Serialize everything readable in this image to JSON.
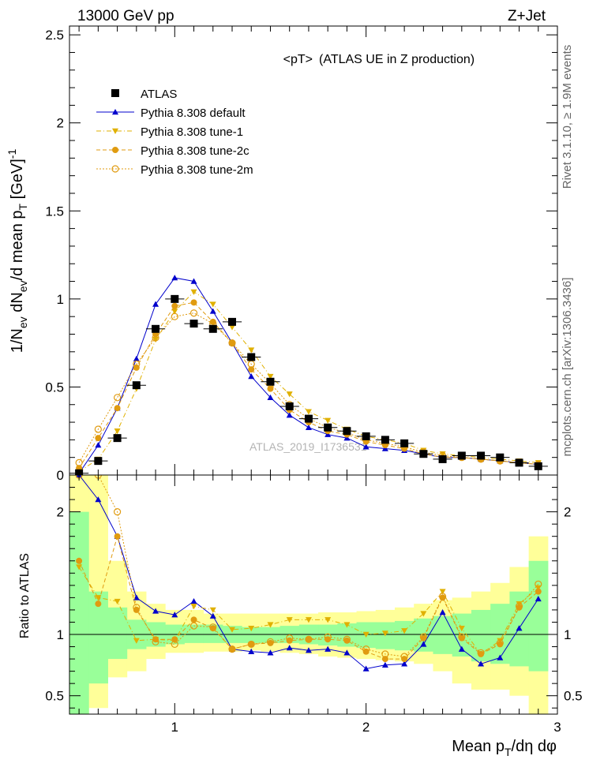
{
  "header": {
    "left": "13000 GeV pp",
    "right": "Z+Jet"
  },
  "side": {
    "rivet": "Rivet 3.1.10, ≥ 1.9M events",
    "mcplots": "mcplots.cern.ch [arXiv:1306.3436]"
  },
  "chart_data": {
    "type": "line",
    "title": "<pT>",
    "subtitle": "(ATLAS UE in Z production)",
    "watermark": "ATLAS_2019_I1736531",
    "ylabel": "1/N_ev dN_ev/d mean p_T [GeV]^-1",
    "ratio_ylabel": "Ratio to ATLAS",
    "xlabel": "Mean p_T/dη dφ",
    "xlim": [
      0.45,
      3.0
    ],
    "ylim": [
      0,
      2.55
    ],
    "ratio_ylim": [
      0.35,
      2.3
    ],
    "x_ticks": [
      "1",
      "2",
      "3"
    ],
    "y_ticks": [
      "0",
      "0.5",
      "1",
      "1.5",
      "2",
      "2.5"
    ],
    "ratio_y_ticks": [
      "0.5",
      "1",
      "2"
    ],
    "legend_position": "top-left",
    "x": [
      0.5,
      0.6,
      0.7,
      0.8,
      0.9,
      1.0,
      1.1,
      1.2,
      1.3,
      1.4,
      1.5,
      1.6,
      1.7,
      1.8,
      1.9,
      2.0,
      2.1,
      2.2,
      2.3,
      2.4,
      2.5,
      2.6,
      2.7,
      2.8,
      2.9
    ],
    "data": {
      "name": "ATLAS",
      "values": [
        0.01,
        0.08,
        0.21,
        0.51,
        0.83,
        1.0,
        0.86,
        0.83,
        0.87,
        0.67,
        0.53,
        0.39,
        0.32,
        0.27,
        0.25,
        0.22,
        0.2,
        0.18,
        0.12,
        0.09,
        0.11,
        0.11,
        0.1,
        0.07,
        0.05
      ],
      "color": "#000000"
    },
    "band_outer": [
      [
        0.0,
        2.3
      ],
      [
        0.4,
        2.3
      ],
      [
        0.65,
        1.6
      ],
      [
        0.7,
        1.35
      ],
      [
        0.8,
        1.25
      ],
      [
        0.85,
        1.2
      ],
      [
        0.85,
        1.2
      ],
      [
        0.86,
        1.17
      ],
      [
        0.86,
        1.17
      ],
      [
        0.87,
        1.17
      ],
      [
        0.86,
        1.17
      ],
      [
        0.85,
        1.17
      ],
      [
        0.84,
        1.17
      ],
      [
        0.82,
        1.18
      ],
      [
        0.81,
        1.18
      ],
      [
        0.8,
        1.19
      ],
      [
        0.79,
        1.2
      ],
      [
        0.78,
        1.22
      ],
      [
        0.76,
        1.25
      ],
      [
        0.7,
        1.28
      ],
      [
        0.6,
        1.3
      ],
      [
        0.55,
        1.35
      ],
      [
        0.55,
        1.42
      ],
      [
        0.5,
        1.55
      ],
      [
        0.35,
        1.8
      ]
    ],
    "band_inner": [
      [
        0.35,
        2.0
      ],
      [
        0.6,
        1.35
      ],
      [
        0.8,
        1.22
      ],
      [
        0.88,
        1.12
      ],
      [
        0.9,
        1.1
      ],
      [
        0.92,
        1.08
      ],
      [
        0.93,
        1.08
      ],
      [
        0.93,
        1.08
      ],
      [
        0.93,
        1.07
      ],
      [
        0.93,
        1.06
      ],
      [
        0.93,
        1.06
      ],
      [
        0.93,
        1.07
      ],
      [
        0.92,
        1.08
      ],
      [
        0.91,
        1.08
      ],
      [
        0.9,
        1.09
      ],
      [
        0.89,
        1.1
      ],
      [
        0.88,
        1.1
      ],
      [
        0.87,
        1.11
      ],
      [
        0.86,
        1.13
      ],
      [
        0.84,
        1.15
      ],
      [
        0.82,
        1.17
      ],
      [
        0.78,
        1.2
      ],
      [
        0.76,
        1.25
      ],
      [
        0.74,
        1.35
      ],
      [
        0.7,
        1.6
      ]
    ],
    "series": [
      {
        "name": "Pythia 8.308 default",
        "color": "#0000cc",
        "marker": "triangle-up",
        "line": "solid",
        "values": [
          0.01,
          0.17,
          0.38,
          0.66,
          0.97,
          1.12,
          1.1,
          0.93,
          0.75,
          0.56,
          0.44,
          0.34,
          0.27,
          0.23,
          0.21,
          0.16,
          0.15,
          0.14,
          0.12,
          0.1,
          0.1,
          0.09,
          0.08,
          0.07,
          0.06
        ],
        "ratio": [
          2.3,
          2.1,
          1.8,
          1.3,
          1.19,
          1.16,
          1.27,
          1.15,
          0.88,
          0.86,
          0.85,
          0.89,
          0.87,
          0.88,
          0.85,
          0.72,
          0.75,
          0.76,
          0.92,
          1.18,
          0.88,
          0.76,
          0.81,
          1.05,
          1.29
        ]
      },
      {
        "name": "Pythia 8.308 tune-1",
        "color": "#e0b000",
        "marker": "triangle-down",
        "line": "dashdot",
        "values": [
          0.02,
          0.09,
          0.25,
          0.49,
          0.77,
          0.93,
          1.04,
          0.97,
          0.84,
          0.71,
          0.56,
          0.46,
          0.36,
          0.31,
          0.26,
          0.22,
          0.2,
          0.18,
          0.14,
          0.12,
          0.11,
          0.1,
          0.09,
          0.08,
          0.07
        ],
        "ratio": [
          1.55,
          1.3,
          1.27,
          0.95,
          0.96,
          0.95,
          1.23,
          1.2,
          1.04,
          1.05,
          1.08,
          1.12,
          1.12,
          1.12,
          1.08,
          1.0,
          1.01,
          1.03,
          1.17,
          1.35,
          1.05,
          0.84,
          0.95,
          1.25,
          1.38
        ]
      },
      {
        "name": "Pythia 8.308 tune-2c",
        "color": "#e09b10",
        "marker": "circle",
        "line": "dashed",
        "values": [
          0.04,
          0.21,
          0.38,
          0.61,
          0.8,
          0.96,
          0.98,
          0.87,
          0.75,
          0.6,
          0.49,
          0.37,
          0.3,
          0.25,
          0.23,
          0.19,
          0.17,
          0.15,
          0.12,
          0.1,
          0.1,
          0.09,
          0.08,
          0.07,
          0.06
        ],
        "ratio": [
          1.6,
          1.25,
          1.8,
          1.2,
          0.96,
          0.96,
          1.12,
          1.05,
          0.88,
          0.92,
          0.93,
          0.95,
          0.96,
          0.96,
          0.95,
          0.86,
          0.8,
          0.8,
          0.97,
          1.3,
          0.97,
          0.84,
          0.92,
          1.22,
          1.35
        ]
      },
      {
        "name": "Pythia 8.308 tune-2m",
        "color": "#e09b10",
        "marker": "circle-open",
        "line": "dotted",
        "values": [
          0.07,
          0.26,
          0.44,
          0.63,
          0.78,
          0.9,
          0.92,
          0.86,
          0.75,
          0.63,
          0.52,
          0.4,
          0.32,
          0.27,
          0.24,
          0.2,
          0.18,
          0.16,
          0.13,
          0.11,
          0.1,
          0.09,
          0.08,
          0.07,
          0.06
        ],
        "ratio": [
          2.3,
          2.3,
          2.0,
          1.22,
          0.94,
          0.92,
          1.07,
          1.06,
          0.88,
          0.92,
          0.94,
          0.97,
          0.96,
          0.98,
          0.96,
          0.88,
          0.84,
          0.82,
          0.98,
          1.31,
          0.98,
          0.85,
          0.93,
          1.23,
          1.41
        ]
      }
    ]
  }
}
